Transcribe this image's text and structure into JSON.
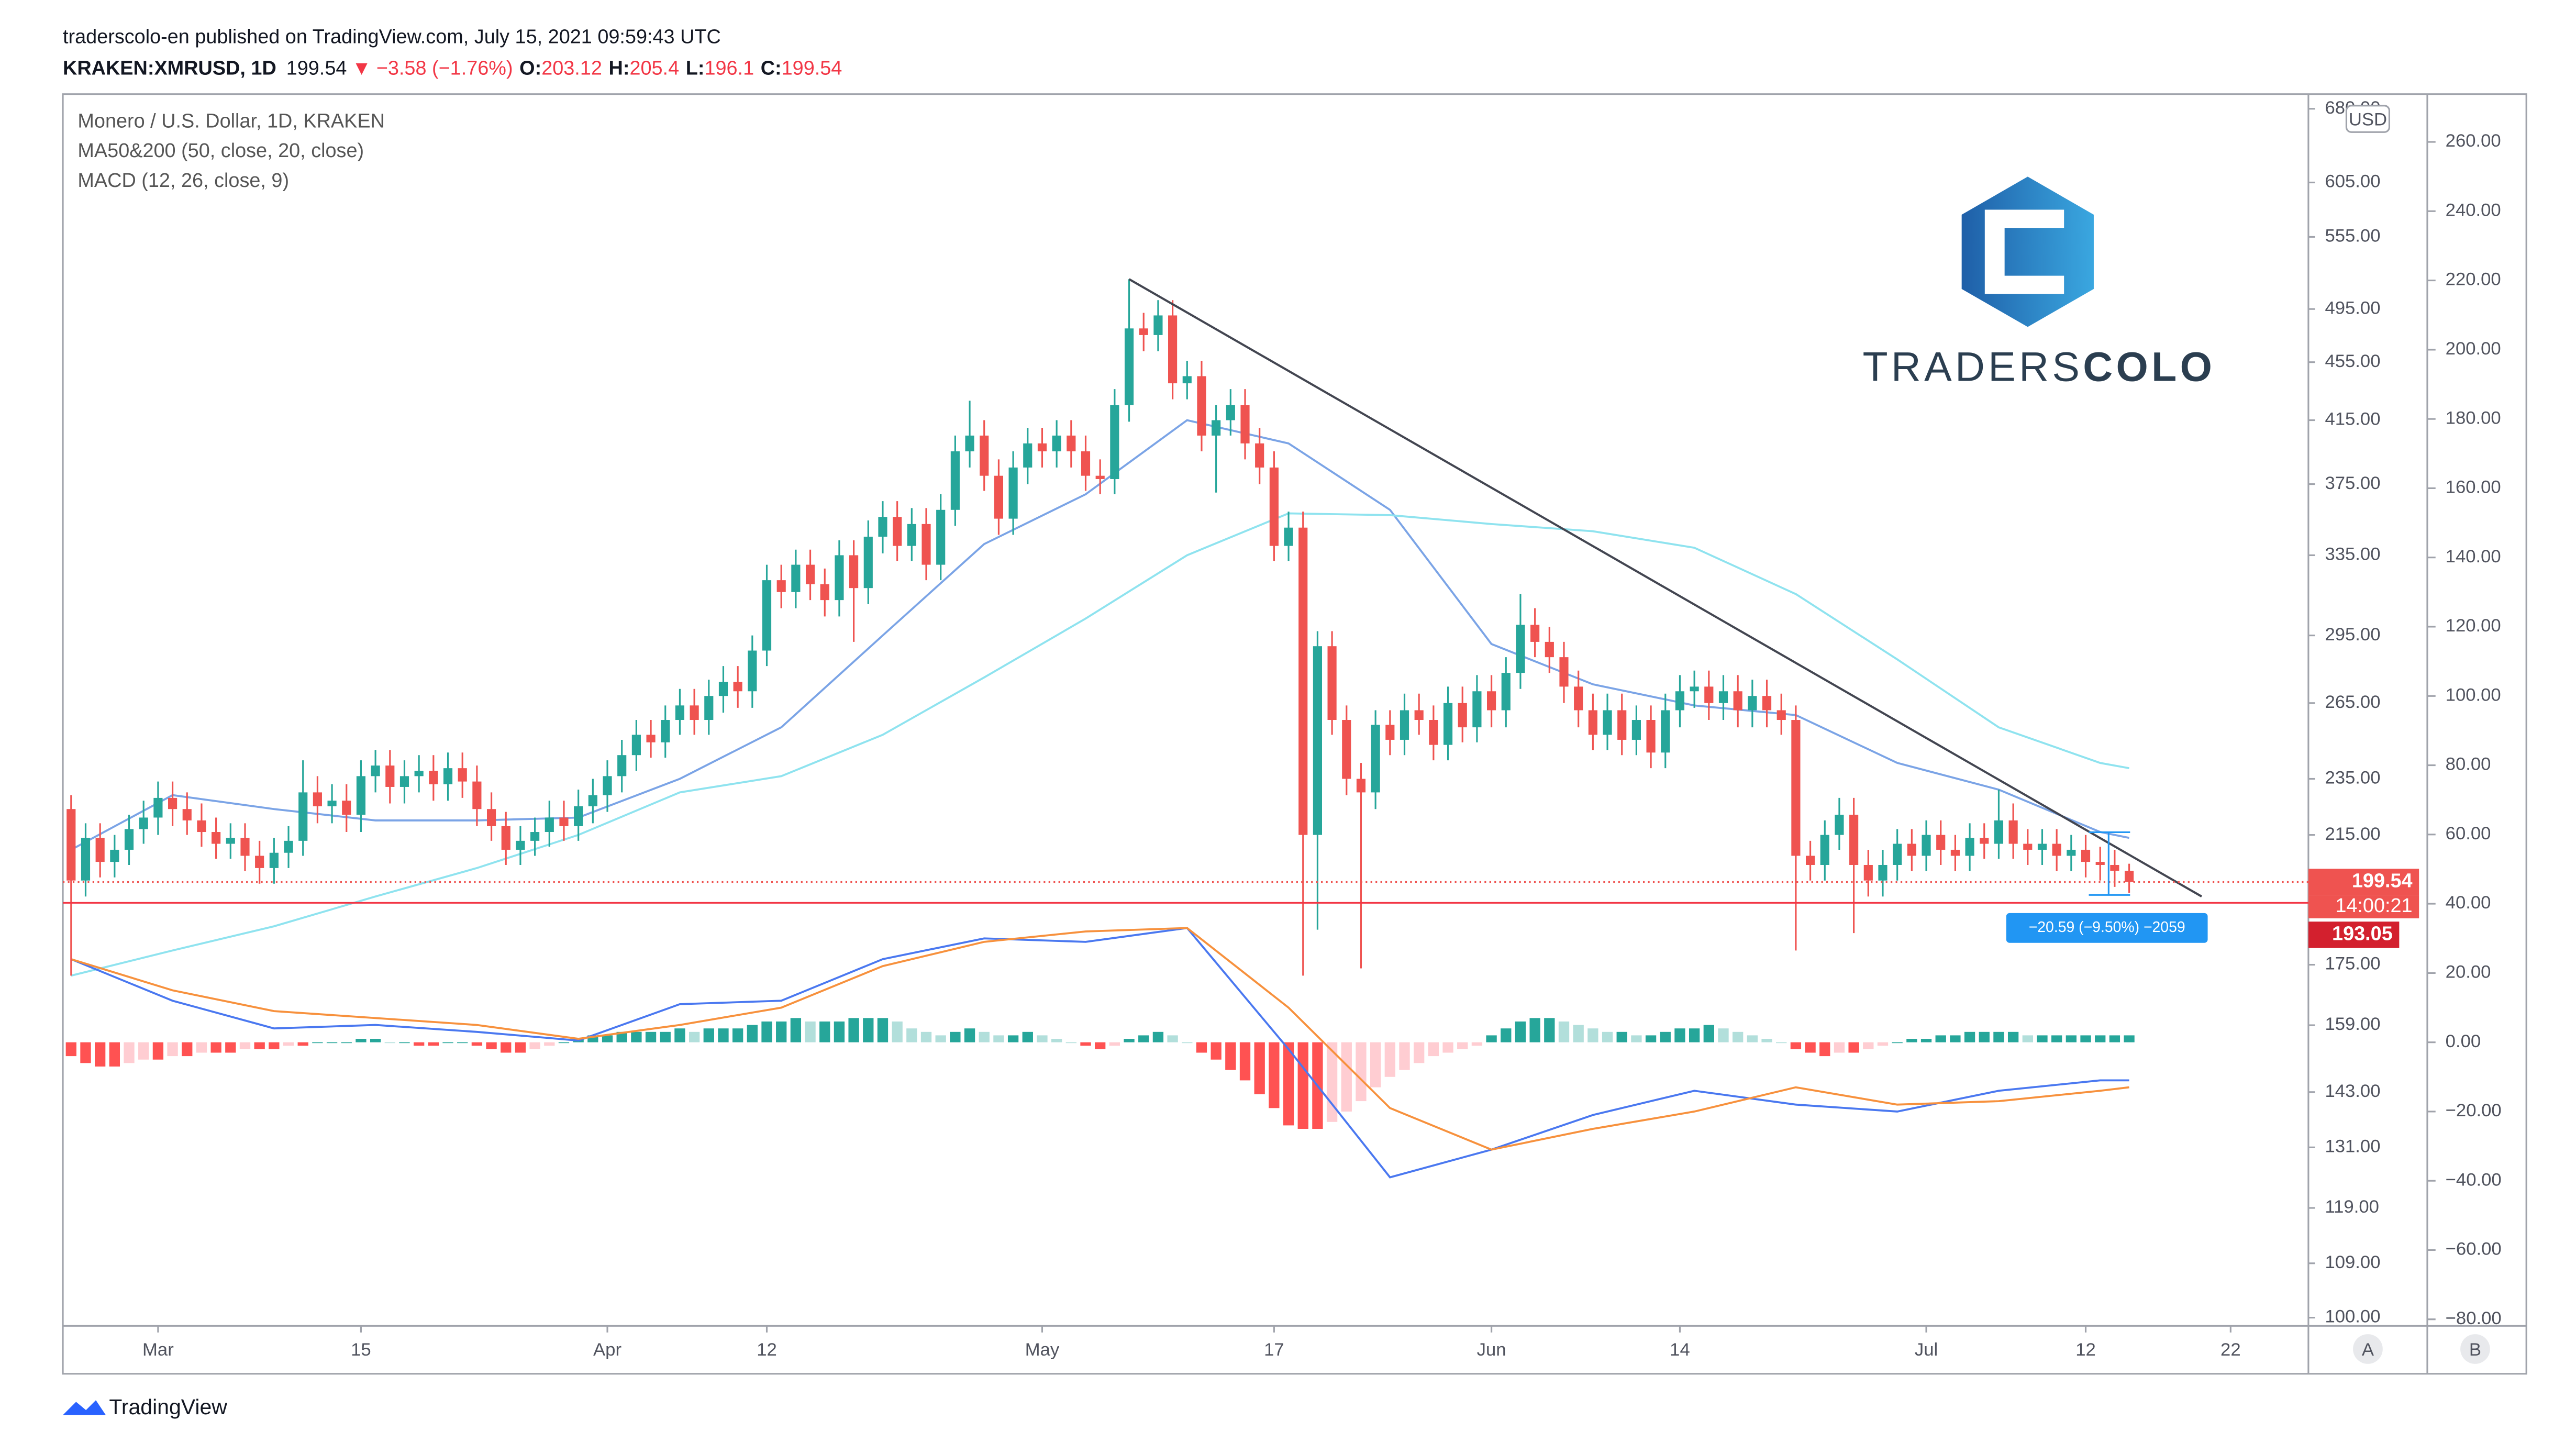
{
  "header": {
    "published": "traderscolo-en published on TradingView.com, July 15, 2021 09:59:43 UTC",
    "symbol": "KRAKEN:XMRUSD, 1D",
    "change": "−3.58 (−1.76%)",
    "ohlc_labels": [
      "O:",
      "H:",
      "L:",
      "C:"
    ],
    "brand": "TradingView",
    "currency": "USD",
    "logo_light": "TRADERS",
    "logo_bold": "COLO",
    "scale_buttons": [
      "A",
      "B"
    ]
  },
  "chart_data": {
    "type": "candlestick",
    "title": "Monero / U.S. Dollar, 1D, KRAKEN",
    "x": [
      "2021-02-23",
      "2021-02-24",
      "2021-02-25",
      "2021-02-26",
      "2021-02-27",
      "2021-02-28",
      "2021-03-01",
      "2021-03-02",
      "2021-03-03",
      "2021-03-04",
      "2021-03-05",
      "2021-03-06",
      "2021-03-07",
      "2021-03-08",
      "2021-03-09",
      "2021-03-10",
      "2021-03-11",
      "2021-03-12",
      "2021-03-13",
      "2021-03-14",
      "2021-03-15",
      "2021-03-16",
      "2021-03-17",
      "2021-03-18",
      "2021-03-19",
      "2021-03-20",
      "2021-03-21",
      "2021-03-22",
      "2021-03-23",
      "2021-03-24",
      "2021-03-25",
      "2021-03-26",
      "2021-03-27",
      "2021-03-28",
      "2021-03-29",
      "2021-03-30",
      "2021-03-31",
      "2021-04-01",
      "2021-04-02",
      "2021-04-03",
      "2021-04-04",
      "2021-04-05",
      "2021-04-06",
      "2021-04-07",
      "2021-04-08",
      "2021-04-09",
      "2021-04-10",
      "2021-04-11",
      "2021-04-12",
      "2021-04-13",
      "2021-04-14",
      "2021-04-15",
      "2021-04-16",
      "2021-04-17",
      "2021-04-18",
      "2021-04-19",
      "2021-04-20",
      "2021-04-21",
      "2021-04-22",
      "2021-04-23",
      "2021-04-24",
      "2021-04-25",
      "2021-04-26",
      "2021-04-27",
      "2021-04-28",
      "2021-04-29",
      "2021-04-30",
      "2021-05-01",
      "2021-05-02",
      "2021-05-03",
      "2021-05-04",
      "2021-05-05",
      "2021-05-06",
      "2021-05-07",
      "2021-05-08",
      "2021-05-09",
      "2021-05-10",
      "2021-05-11",
      "2021-05-12",
      "2021-05-13",
      "2021-05-14",
      "2021-05-15",
      "2021-05-16",
      "2021-05-17",
      "2021-05-18",
      "2021-05-19",
      "2021-05-20",
      "2021-05-21",
      "2021-05-22",
      "2021-05-23",
      "2021-05-24",
      "2021-05-25",
      "2021-05-26",
      "2021-05-27",
      "2021-05-28",
      "2021-05-29",
      "2021-05-30",
      "2021-05-31",
      "2021-06-01",
      "2021-06-02",
      "2021-06-03",
      "2021-06-04",
      "2021-06-05",
      "2021-06-06",
      "2021-06-07",
      "2021-06-08",
      "2021-06-09",
      "2021-06-10",
      "2021-06-11",
      "2021-06-12",
      "2021-06-13",
      "2021-06-14",
      "2021-06-15",
      "2021-06-16",
      "2021-06-17",
      "2021-06-18",
      "2021-06-19",
      "2021-06-20",
      "2021-06-21",
      "2021-06-22",
      "2021-06-23",
      "2021-06-24",
      "2021-06-25",
      "2021-06-26",
      "2021-06-27",
      "2021-06-28",
      "2021-06-29",
      "2021-06-30",
      "2021-07-01",
      "2021-07-02",
      "2021-07-03",
      "2021-07-04",
      "2021-07-05",
      "2021-07-06",
      "2021-07-07",
      "2021-07-08",
      "2021-07-09",
      "2021-07-10",
      "2021-07-11",
      "2021-07-12",
      "2021-07-13",
      "2021-07-14",
      "2021-07-15"
    ],
    "open": [
      224,
      200,
      214,
      206,
      210,
      217,
      221,
      228,
      224,
      220,
      216,
      212,
      214,
      208,
      204,
      209,
      213,
      230,
      225,
      227,
      222,
      236,
      240,
      232,
      236,
      238,
      233,
      239,
      234,
      224,
      218,
      210,
      213,
      216,
      221,
      218,
      225,
      229,
      236,
      244,
      252,
      249,
      258,
      264,
      258,
      268,
      274,
      270,
      288,
      322,
      316,
      330,
      320,
      312,
      335,
      318,
      345,
      356,
      340,
      352,
      330,
      360,
      395,
      405,
      380,
      355,
      385,
      400,
      395,
      405,
      395,
      380,
      378,
      425,
      480,
      475,
      490,
      440,
      445,
      405,
      415,
      425,
      400,
      385,
      340,
      350,
      215,
      290,
      258,
      235,
      230,
      256,
      250,
      262,
      258,
      248,
      265,
      255,
      270,
      262,
      278,
      300,
      292,
      285,
      272,
      262,
      252,
      262,
      250,
      258,
      245,
      262,
      270,
      272,
      265,
      270,
      262,
      268,
      262,
      258,
      208,
      205,
      215,
      222,
      205,
      200,
      205,
      212,
      208,
      215,
      210,
      208,
      214,
      212,
      220,
      212,
      210,
      212,
      208,
      210,
      206,
      205,
      203.12
    ],
    "high": [
      229,
      219,
      219,
      215,
      222,
      227,
      234,
      234,
      230,
      226,
      221,
      219,
      219,
      213,
      214,
      218,
      242,
      236,
      233,
      233,
      242,
      246,
      246,
      242,
      244,
      244,
      245,
      245,
      240,
      230,
      223,
      218,
      221,
      227,
      227,
      231,
      235,
      242,
      250,
      258,
      258,
      264,
      271,
      271,
      275,
      281,
      281,
      295,
      330,
      330,
      338,
      338,
      328,
      343,
      343,
      354,
      365,
      365,
      361,
      361,
      369,
      405,
      428,
      415,
      390,
      395,
      410,
      410,
      415,
      415,
      405,
      390,
      436,
      519,
      492,
      502,
      502,
      456,
      456,
      425,
      436,
      436,
      410,
      395,
      359,
      359,
      297,
      297,
      264,
      241,
      262,
      262,
      269,
      269,
      264,
      272,
      272,
      277,
      277,
      285,
      315,
      308,
      299,
      292,
      279,
      269,
      269,
      269,
      264,
      264,
      269,
      277,
      279,
      279,
      277,
      277,
      275,
      275,
      269,
      264,
      213,
      220,
      228,
      228,
      210,
      210,
      217,
      217,
      220,
      220,
      215,
      219,
      219,
      231,
      226,
      217,
      217,
      217,
      215,
      215,
      211,
      210,
      205.4
    ],
    "low": [
      172,
      195,
      201,
      201,
      205,
      212,
      215,
      218,
      215,
      211,
      207,
      207,
      203,
      199,
      199,
      204,
      208,
      219,
      219,
      216,
      216,
      230,
      226,
      226,
      230,
      227,
      227,
      228,
      218,
      213,
      205,
      205,
      208,
      211,
      213,
      213,
      219,
      223,
      230,
      238,
      243,
      243,
      252,
      252,
      252,
      261,
      263,
      263,
      281,
      308,
      308,
      312,
      304,
      304,
      292,
      310,
      336,
      332,
      332,
      322,
      322,
      351,
      385,
      371,
      346,
      346,
      375,
      385,
      385,
      385,
      371,
      369,
      369,
      414,
      463,
      463,
      429,
      429,
      395,
      370,
      405,
      390,
      375,
      332,
      332,
      172,
      185,
      252,
      229,
      174,
      224,
      244,
      244,
      252,
      242,
      242,
      249,
      249,
      255,
      255,
      271,
      285,
      278,
      265,
      255,
      246,
      246,
      244,
      244,
      239,
      239,
      255,
      263,
      258,
      258,
      255,
      255,
      255,
      252,
      179,
      200,
      200,
      210,
      184,
      195,
      195,
      200,
      203,
      203,
      205,
      203,
      203,
      207,
      207,
      207,
      205,
      205,
      203,
      203,
      201,
      200,
      198,
      196.1
    ],
    "close": [
      200,
      214,
      206,
      210,
      217,
      221,
      228,
      224,
      220,
      216,
      212,
      214,
      208,
      204,
      209,
      213,
      230,
      225,
      227,
      222,
      236,
      240,
      232,
      236,
      238,
      233,
      239,
      234,
      224,
      218,
      210,
      213,
      216,
      221,
      218,
      225,
      229,
      236,
      244,
      252,
      249,
      258,
      264,
      258,
      268,
      274,
      270,
      288,
      322,
      316,
      330,
      320,
      312,
      335,
      318,
      345,
      356,
      340,
      352,
      330,
      360,
      395,
      405,
      380,
      355,
      385,
      400,
      395,
      405,
      395,
      380,
      378,
      425,
      480,
      475,
      490,
      440,
      445,
      405,
      415,
      425,
      400,
      385,
      340,
      350,
      215,
      290,
      258,
      235,
      230,
      256,
      250,
      262,
      258,
      248,
      265,
      255,
      270,
      262,
      278,
      300,
      292,
      285,
      272,
      262,
      252,
      262,
      250,
      258,
      245,
      262,
      270,
      272,
      265,
      270,
      262,
      268,
      262,
      258,
      208,
      205,
      215,
      222,
      205,
      200,
      205,
      212,
      208,
      215,
      210,
      208,
      214,
      212,
      220,
      212,
      210,
      212,
      208,
      210,
      206,
      205,
      203.12,
      199.54
    ],
    "up_color": "#26a69a",
    "down_color": "#ef5350",
    "xlim": [
      "2021-02-23",
      "2021-07-26"
    ],
    "xticks": [
      {
        "value": "2021-03-01",
        "label": "Mar"
      },
      {
        "value": "2021-03-15",
        "label": "15"
      },
      {
        "value": "2021-04-01",
        "label": "Apr"
      },
      {
        "value": "2021-04-12",
        "label": "12"
      },
      {
        "value": "2021-05-01",
        "label": "May"
      },
      {
        "value": "2021-05-17",
        "label": "17"
      },
      {
        "value": "2021-06-01",
        "label": "Jun"
      },
      {
        "value": "2021-06-14",
        "label": "14"
      },
      {
        "value": "2021-07-01",
        "label": "Jul"
      },
      {
        "value": "2021-07-12",
        "label": "12"
      },
      {
        "value": "2021-07-22",
        "label": "22"
      }
    ],
    "log_y": true,
    "grid": false,
    "ylim": [
      98.7,
      696
    ],
    "yticks": [
      {
        "value": 100,
        "label": "100.00"
      },
      {
        "value": 109,
        "label": "109.00"
      },
      {
        "value": 119,
        "label": "119.00"
      },
      {
        "value": 131,
        "label": "131.00"
      },
      {
        "value": 143,
        "label": "143.00"
      },
      {
        "value": 159,
        "label": "159.00"
      },
      {
        "value": 175,
        "label": "175.00"
      },
      {
        "value": 215,
        "label": "215.00"
      },
      {
        "value": 235,
        "label": "235.00"
      },
      {
        "value": 265,
        "label": "265.00"
      },
      {
        "value": 295,
        "label": "295.00"
      },
      {
        "value": 335,
        "label": "335.00"
      },
      {
        "value": 375,
        "label": "375.00"
      },
      {
        "value": 415,
        "label": "415.00"
      },
      {
        "value": 455,
        "label": "455.00"
      },
      {
        "value": 495,
        "label": "495.00"
      },
      {
        "value": 555,
        "label": "555.00"
      },
      {
        "value": 605,
        "label": "605.00"
      },
      {
        "value": 680,
        "label": "680.00"
      }
    ],
    "y2lim": [
      -81.9,
      273.8
    ],
    "y2ticks": [
      {
        "value": -80,
        "label": "−80.00"
      },
      {
        "value": -60,
        "label": "−60.00"
      },
      {
        "value": -40,
        "label": "−40.00"
      },
      {
        "value": -20,
        "label": "−20.00"
      },
      {
        "value": 0,
        "label": "0.00"
      },
      {
        "value": 20,
        "label": "20.00"
      },
      {
        "value": 40,
        "label": "40.00"
      },
      {
        "value": 60,
        "label": "60.00"
      },
      {
        "value": 80,
        "label": "80.00"
      },
      {
        "value": 100,
        "label": "100.00"
      },
      {
        "value": 120,
        "label": "120.00"
      },
      {
        "value": 140,
        "label": "140.00"
      },
      {
        "value": 160,
        "label": "160.00"
      },
      {
        "value": 180,
        "label": "180.00"
      },
      {
        "value": 200,
        "label": "200.00"
      },
      {
        "value": 220,
        "label": "220.00"
      },
      {
        "value": 240,
        "label": "240.00"
      },
      {
        "value": 260,
        "label": "260.00"
      }
    ],
    "indicators": [
      {
        "label": "MA50&200 (50, close, 20, close)",
        "x": [
          "2021-02-23",
          "2021-03-02",
          "2021-03-09",
          "2021-03-16",
          "2021-03-23",
          "2021-03-30",
          "2021-04-06",
          "2021-04-13",
          "2021-04-20",
          "2021-04-27",
          "2021-05-04",
          "2021-05-11",
          "2021-05-18",
          "2021-05-25",
          "2021-06-01",
          "2021-06-08",
          "2021-06-15",
          "2021-06-22",
          "2021-06-29",
          "2021-07-06",
          "2021-07-13",
          "2021-07-15"
        ],
        "series": [
          {
            "color": "#7ba4e6",
            "values": [
              210,
              229,
              224,
              220,
              220,
              221,
              235,
              255,
              295,
              341,
              369,
              415,
              400,
              360,
              291,
              273,
              264,
              260,
              241,
              231,
              216,
              214
            ]
          },
          {
            "color": "#8fe3ef",
            "values": [
              172,
              179,
              186,
              195,
              204,
              215,
              230,
              236,
              252,
              276,
              303,
              335,
              358,
              357,
              352,
              348,
              339,
              315,
              284,
              255,
              241,
              239
            ]
          }
        ]
      },
      {
        "label": "MACD (12, 26, close, 9)",
        "axis": "y2",
        "x": [
          "2021-02-23",
          "2021-03-02",
          "2021-03-09",
          "2021-03-16",
          "2021-03-23",
          "2021-03-30",
          "2021-04-06",
          "2021-04-13",
          "2021-04-20",
          "2021-04-27",
          "2021-05-04",
          "2021-05-11",
          "2021-05-18",
          "2021-05-25",
          "2021-06-01",
          "2021-06-08",
          "2021-06-15",
          "2021-06-22",
          "2021-06-29",
          "2021-07-06",
          "2021-07-13",
          "2021-07-15"
        ],
        "series": [
          {
            "color": "#4a78f0",
            "values": [
              24,
              12,
              4,
              5,
              3,
              0.5,
              11,
              12,
              24,
              30,
              29,
              33,
              -2,
              -39,
              -31,
              -21,
              -14,
              -18,
              -20,
              -14,
              -11,
              -11
            ]
          },
          {
            "color": "#f7913d",
            "values": [
              24,
              15,
              9,
              7,
              5,
              1,
              5,
              10,
              22,
              29,
              32,
              33,
              10,
              -19,
              -31,
              -25,
              -20,
              -13,
              -18,
              -17,
              -14,
              -13
            ]
          }
        ],
        "histogram": {
          "values": [
            -4,
            -6,
            -7,
            -7,
            -6,
            -5,
            -5,
            -4,
            -4,
            -3,
            -3,
            -3,
            -2,
            -2,
            -2,
            -1,
            -1,
            0,
            0,
            0,
            1,
            1,
            0,
            0,
            -1,
            -1,
            0,
            0,
            -1,
            -2,
            -3,
            -3,
            -2,
            -1,
            0,
            1,
            2,
            2,
            3,
            3,
            3,
            3,
            4,
            3,
            4,
            4,
            4,
            5,
            6,
            6,
            7,
            6,
            6,
            6,
            7,
            7,
            7,
            6,
            4,
            3,
            2,
            3,
            4,
            3,
            2,
            2,
            3,
            2,
            1,
            0,
            -1,
            -2,
            -1,
            1,
            2,
            3,
            2,
            0,
            -3,
            -5,
            -8,
            -11,
            -15,
            -19,
            -24,
            -25,
            -25,
            -23,
            -20,
            -17,
            -13,
            -10,
            -8,
            -6,
            -4,
            -3,
            -2,
            -1,
            2,
            4,
            6,
            7,
            7,
            6,
            5,
            4,
            3,
            3,
            2,
            2,
            3,
            4,
            4,
            5,
            4,
            3,
            2,
            1,
            0,
            -2,
            -3,
            -4,
            -3,
            -3,
            -2,
            -1,
            0,
            1,
            1,
            2,
            2,
            3,
            3,
            3,
            3,
            2,
            2,
            2,
            2,
            2,
            2,
            2,
            2
          ],
          "colors": {
            "grow_above": "#26a69a",
            "fall_above": "#b2dfdb",
            "grow_below": "#ffcdd2",
            "fall_below": "#ff5252"
          }
        }
      }
    ],
    "trendline": {
      "x": [
        "2021-05-07",
        "2021-07-20"
      ],
      "values": [
        519,
        195
      ],
      "color": "#434651"
    },
    "hline": {
      "value": 193.05,
      "color": "#f23645"
    },
    "countdown": "14:00:21",
    "measure_label": "−20.59 (−9.50%) −2059"
  }
}
